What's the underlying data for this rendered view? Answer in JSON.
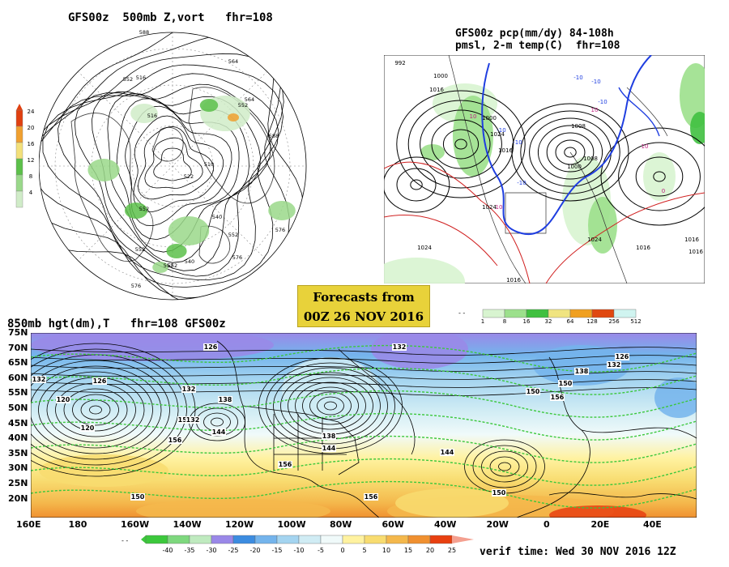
{
  "panel_500mb": {
    "title": "GFS00z  500mb Z,vort   fhr=108",
    "colorbar": {
      "labels": [
        "24",
        "20",
        "16",
        "12",
        "8",
        "4"
      ],
      "colors": [
        "#e04010",
        "#f0a030",
        "#f3e07a",
        "#5cc04a",
        "#9ad88a",
        "#d0ecc8"
      ]
    },
    "contour_labels": [
      "588",
      "564",
      "552",
      "516",
      "564",
      "588",
      "552",
      "516",
      "510",
      "522",
      "552",
      "540",
      "576",
      "552",
      "540",
      "576",
      "552",
      "576",
      "552",
      "552"
    ]
  },
  "panel_pcp": {
    "title_line1": "GFS00z pcp(mm/dy) 84-108h",
    "title_line2": "pmsl, 2-m temp(C)  fhr=108",
    "colorbar": {
      "labels": [
        "1",
        "8",
        "16",
        "32",
        "64",
        "128",
        "256",
        "512"
      ],
      "colors": [
        "#d8f4d0",
        "#9ce08c",
        "#40c040",
        "#f0e480",
        "#f0a020",
        "#e04810",
        "#d0f4f0"
      ]
    },
    "isobar_labels": [
      "992",
      "1000",
      "1016",
      "1000",
      "1024",
      "1016",
      "1024",
      "1016",
      "1008",
      "1000",
      "1008",
      "1024",
      "1016",
      "1016",
      "1016",
      "1024"
    ],
    "temp_labels": [
      "-10",
      "-10",
      "-10",
      "10",
      "10",
      "10",
      "10",
      "-10",
      "-10",
      "-10",
      "0"
    ]
  },
  "forecast_box": {
    "line1": "Forecasts from",
    "line2": "00Z 26 NOV 2016"
  },
  "panel_850mb": {
    "title": "850mb hgt(dm),T   fhr=108 GFS00z",
    "lat_labels": [
      "75N",
      "70N",
      "65N",
      "60N",
      "55N",
      "50N",
      "45N",
      "40N",
      "35N",
      "30N",
      "25N",
      "20N"
    ],
    "lon_labels": [
      "160E",
      "180",
      "160W",
      "140W",
      "120W",
      "100W",
      "80W",
      "60W",
      "40W",
      "20W",
      "0",
      "20E",
      "40E"
    ],
    "height_labels": [
      "132",
      "126",
      "132",
      "126",
      "120",
      "150",
      "144",
      "138",
      "156",
      "132",
      "138",
      "144",
      "156",
      "150",
      "156",
      "150",
      "138",
      "132",
      "126",
      "144",
      "120",
      "132",
      "150",
      "156",
      "150"
    ],
    "colorbar": {
      "labels": [
        "-40",
        "-35",
        "-30",
        "-25",
        "-20",
        "-15",
        "-10",
        "-5",
        "0",
        "5",
        "10",
        "15",
        "20",
        "25"
      ],
      "colors": [
        "#3cc83c",
        "#7ed87e",
        "#bfeabf",
        "#9a88e8",
        "#3c8ce0",
        "#74b4ec",
        "#a4d4f0",
        "#d0ecf4",
        "#f0fafa",
        "#fff2a0",
        "#f8dc70",
        "#f4b84c",
        "#f09030",
        "#e84010",
        "#f4a090"
      ]
    },
    "verif_time": "verif time: Wed 30 NOV 2016 12Z"
  }
}
